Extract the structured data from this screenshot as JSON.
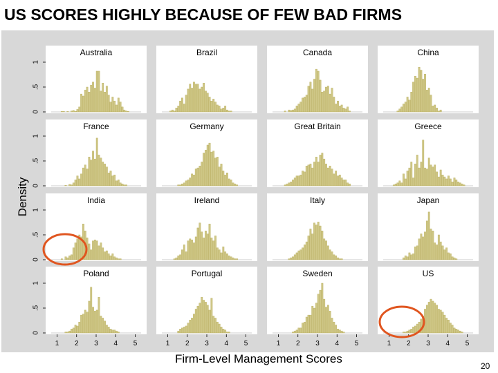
{
  "title": "US SCORES HIGHLY BECAUSE OF FEW BAD FIRMS",
  "page_number": "20",
  "colors": {
    "panel_background": "#d8d8d8",
    "plot_background": "#ffffff",
    "bar_fill": "#cfc787",
    "bar_stroke": "#b8ad5c",
    "highlight_circle": "#e0551f"
  },
  "annotations": [
    {
      "type": "circle",
      "panel": "India",
      "region": "low scores 1.5-2.5"
    },
    {
      "type": "circle",
      "panel": "US",
      "region": "low scores 1.5-2.5"
    }
  ],
  "chart_data": {
    "type": "bar",
    "subtype": "histogram-small-multiples",
    "xlabel": "Firm-Level Management Scores",
    "ylabel": "Density",
    "xlim": [
      0.7,
      5.3
    ],
    "ylim": [
      0,
      1.0
    ],
    "xticks": [
      1,
      2,
      3,
      4,
      5
    ],
    "yticks": [
      0,
      0.5,
      1
    ],
    "ytick_labels": [
      "0",
      ".5",
      "1"
    ],
    "bin_starts": [
      1.0,
      1.1,
      1.2,
      1.3,
      1.4,
      1.5,
      1.6,
      1.7,
      1.8,
      1.9,
      2.0,
      2.1,
      2.2,
      2.3,
      2.4,
      2.5,
      2.6,
      2.7,
      2.8,
      2.9,
      3.0,
      3.1,
      3.2,
      3.3,
      3.4,
      3.5,
      3.6,
      3.7,
      3.8,
      3.9,
      4.0,
      4.1,
      4.2,
      4.3,
      4.4,
      4.5,
      4.6,
      4.7,
      4.8,
      4.9
    ],
    "bin_width": 0.1,
    "panels": [
      {
        "name": "Australia",
        "values": [
          0,
          0,
          0.01,
          0.01,
          0,
          0.01,
          0,
          0.02,
          0.03,
          0.01,
          0.05,
          0.1,
          0.36,
          0.32,
          0.44,
          0.5,
          0.4,
          0.54,
          0.6,
          0.48,
          0.82,
          0.82,
          0.42,
          0.58,
          0.4,
          0.52,
          0.34,
          0.2,
          0.3,
          0.22,
          0.14,
          0.28,
          0.2,
          0.1,
          0.04,
          0.02,
          0.01,
          0,
          0,
          0
        ]
      },
      {
        "name": "Brazil",
        "values": [
          0,
          0.02,
          0.04,
          0.02,
          0.08,
          0.12,
          0.22,
          0.28,
          0.16,
          0.34,
          0.46,
          0.56,
          0.48,
          0.6,
          0.56,
          0.56,
          0.46,
          0.5,
          0.58,
          0.42,
          0.38,
          0.3,
          0.22,
          0.26,
          0.2,
          0.14,
          0.12,
          0.06,
          0.08,
          0.12,
          0.04,
          0.02,
          0.02,
          0,
          0,
          0,
          0,
          0,
          0,
          0
        ]
      },
      {
        "name": "Canada",
        "values": [
          0,
          0,
          0,
          0.02,
          0,
          0.04,
          0.03,
          0.04,
          0.06,
          0.12,
          0.16,
          0.2,
          0.28,
          0.3,
          0.34,
          0.52,
          0.6,
          0.46,
          0.66,
          0.86,
          0.82,
          0.64,
          0.4,
          0.42,
          0.5,
          0.52,
          0.36,
          0.48,
          0.3,
          0.16,
          0.22,
          0.12,
          0.14,
          0.08,
          0.06,
          0.1,
          0.02,
          0,
          0,
          0
        ]
      },
      {
        "name": "China",
        "values": [
          0,
          0,
          0,
          0,
          0.02,
          0.06,
          0.1,
          0.16,
          0.2,
          0.3,
          0.24,
          0.4,
          0.6,
          0.72,
          0.68,
          0.9,
          0.84,
          0.66,
          0.76,
          0.44,
          0.48,
          0.34,
          0.12,
          0.14,
          0.08,
          0.02,
          0.04,
          0,
          0,
          0,
          0,
          0,
          0,
          0,
          0,
          0,
          0,
          0,
          0,
          0
        ]
      },
      {
        "name": "France",
        "values": [
          0,
          0,
          0,
          0,
          0.01,
          0,
          0.03,
          0.02,
          0.06,
          0.12,
          0.2,
          0.14,
          0.24,
          0.36,
          0.42,
          0.34,
          0.58,
          0.52,
          0.7,
          0.54,
          0.96,
          0.62,
          0.56,
          0.48,
          0.44,
          0.38,
          0.26,
          0.3,
          0.2,
          0.22,
          0.1,
          0.12,
          0.06,
          0.04,
          0.02,
          0.02,
          0,
          0,
          0,
          0
        ]
      },
      {
        "name": "Germany",
        "values": [
          0,
          0,
          0,
          0,
          0,
          0.02,
          0.02,
          0.04,
          0.06,
          0.1,
          0.12,
          0.16,
          0.24,
          0.22,
          0.34,
          0.36,
          0.4,
          0.48,
          0.66,
          0.72,
          0.82,
          0.86,
          0.68,
          0.7,
          0.56,
          0.58,
          0.38,
          0.44,
          0.3,
          0.22,
          0.26,
          0.14,
          0.12,
          0.06,
          0.04,
          0.02,
          0,
          0,
          0,
          0
        ]
      },
      {
        "name": "Great Britain",
        "values": [
          0,
          0,
          0,
          0.02,
          0.04,
          0.06,
          0.08,
          0.12,
          0.16,
          0.2,
          0.2,
          0.22,
          0.3,
          0.28,
          0.4,
          0.42,
          0.44,
          0.36,
          0.48,
          0.58,
          0.48,
          0.62,
          0.66,
          0.54,
          0.44,
          0.36,
          0.4,
          0.34,
          0.24,
          0.3,
          0.2,
          0.22,
          0.16,
          0.12,
          0.12,
          0.06,
          0.04,
          0,
          0,
          0
        ]
      },
      {
        "name": "Greece",
        "values": [
          0,
          0,
          0.02,
          0.04,
          0.06,
          0.1,
          0.06,
          0.24,
          0.14,
          0.3,
          0.36,
          0.48,
          0.16,
          0.44,
          0.62,
          0.36,
          0.48,
          0.92,
          0.36,
          0.34,
          0.56,
          0.42,
          0.38,
          0.42,
          0.28,
          0.18,
          0.32,
          0.22,
          0.18,
          0.14,
          0.2,
          0.14,
          0.08,
          0.16,
          0.12,
          0.08,
          0.06,
          0.04,
          0.02,
          0
        ]
      },
      {
        "name": "India",
        "values": [
          0,
          0,
          0.02,
          0,
          0.06,
          0.04,
          0.08,
          0.1,
          0.24,
          0.34,
          0.42,
          0.5,
          0.46,
          0.72,
          0.58,
          0.44,
          0.32,
          0.2,
          0.38,
          0.4,
          0.38,
          0.28,
          0.34,
          0.24,
          0.16,
          0.18,
          0.12,
          0.08,
          0.12,
          0.06,
          0.04,
          0.02,
          0.02,
          0,
          0,
          0,
          0,
          0,
          0,
          0
        ]
      },
      {
        "name": "Ireland",
        "values": [
          0,
          0,
          0,
          0.02,
          0.04,
          0.08,
          0.1,
          0.2,
          0.3,
          0.16,
          0.38,
          0.42,
          0.4,
          0.34,
          0.46,
          0.64,
          0.74,
          0.56,
          0.44,
          0.58,
          0.52,
          0.72,
          0.44,
          0.38,
          0.48,
          0.24,
          0.2,
          0.14,
          0.26,
          0.16,
          0.12,
          0.08,
          0.06,
          0.04,
          0.02,
          0.02,
          0,
          0,
          0,
          0
        ]
      },
      {
        "name": "Italy",
        "values": [
          0,
          0,
          0,
          0,
          0,
          0.02,
          0.04,
          0.06,
          0.1,
          0.14,
          0.18,
          0.2,
          0.24,
          0.3,
          0.36,
          0.48,
          0.62,
          0.52,
          0.74,
          0.7,
          0.76,
          0.68,
          0.58,
          0.42,
          0.38,
          0.28,
          0.2,
          0.16,
          0.1,
          0.08,
          0.04,
          0.02,
          0.02,
          0,
          0,
          0,
          0,
          0,
          0,
          0
        ]
      },
      {
        "name": "Japan",
        "values": [
          0,
          0,
          0,
          0,
          0,
          0,
          0,
          0.04,
          0.08,
          0.06,
          0.14,
          0.1,
          0.12,
          0.26,
          0.28,
          0.42,
          0.52,
          0.46,
          0.56,
          0.78,
          0.96,
          0.62,
          0.58,
          0.34,
          0.3,
          0.5,
          0.36,
          0.28,
          0.2,
          0.24,
          0.14,
          0.12,
          0.06,
          0.04,
          0.02,
          0,
          0,
          0,
          0,
          0
        ]
      },
      {
        "name": "Poland",
        "values": [
          0,
          0,
          0,
          0,
          0.02,
          0.02,
          0.04,
          0.08,
          0.1,
          0.16,
          0.14,
          0.22,
          0.36,
          0.38,
          0.46,
          0.42,
          0.64,
          0.92,
          0.52,
          0.44,
          0.46,
          0.72,
          0.34,
          0.3,
          0.24,
          0.16,
          0.12,
          0.08,
          0.06,
          0.06,
          0.04,
          0.02,
          0,
          0,
          0,
          0,
          0,
          0,
          0,
          0
        ]
      },
      {
        "name": "Portugal",
        "values": [
          0,
          0,
          0,
          0,
          0,
          0.04,
          0.08,
          0.1,
          0.12,
          0.14,
          0.2,
          0.26,
          0.3,
          0.38,
          0.48,
          0.54,
          0.6,
          0.72,
          0.66,
          0.62,
          0.56,
          0.46,
          0.7,
          0.34,
          0.3,
          0.22,
          0.18,
          0.12,
          0.08,
          0.06,
          0.02,
          0.02,
          0,
          0,
          0,
          0,
          0,
          0,
          0,
          0
        ]
      },
      {
        "name": "Sweden",
        "values": [
          0,
          0,
          0,
          0,
          0,
          0,
          0,
          0.02,
          0.04,
          0.06,
          0.1,
          0.1,
          0.2,
          0.22,
          0.32,
          0.36,
          0.36,
          0.54,
          0.5,
          0.6,
          0.78,
          0.86,
          1.0,
          0.68,
          0.52,
          0.56,
          0.44,
          0.3,
          0.22,
          0.16,
          0.08,
          0.06,
          0.04,
          0.02,
          0,
          0,
          0,
          0,
          0,
          0
        ]
      },
      {
        "name": "US",
        "values": [
          0,
          0,
          0,
          0,
          0,
          0,
          0,
          0.02,
          0.02,
          0.04,
          0.06,
          0.08,
          0.12,
          0.14,
          0.18,
          0.22,
          0.28,
          0.34,
          0.48,
          0.56,
          0.62,
          0.68,
          0.64,
          0.6,
          0.56,
          0.48,
          0.46,
          0.42,
          0.36,
          0.3,
          0.26,
          0.2,
          0.16,
          0.1,
          0.08,
          0.06,
          0.04,
          0.02,
          0,
          0
        ]
      }
    ]
  }
}
